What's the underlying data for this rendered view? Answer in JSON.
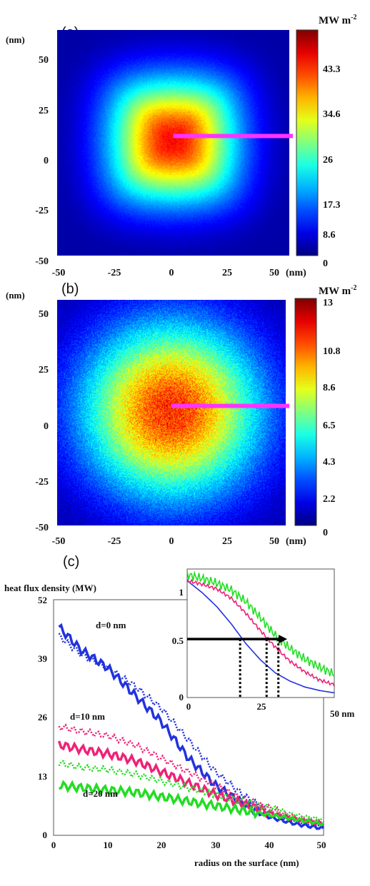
{
  "chart_data": [
    {
      "type": "heatmap",
      "panel_label": "(a)",
      "colorbar_label": "MW m",
      "colorbar_exponent": "-2",
      "x_unit": "(nm)",
      "y_unit": "(nm)",
      "x_ticks": [
        "-50",
        "-25",
        "0",
        "25",
        "50"
      ],
      "y_ticks": [
        "50",
        "25",
        "0",
        "-25",
        "-50"
      ],
      "xlim": [
        -50,
        50
      ],
      "ylim": [
        -50,
        50
      ],
      "colorbar_ticks": [
        "43.3",
        "34.6",
        "26",
        "17.3",
        "8.6",
        "0"
      ],
      "colorbar_range": [
        0,
        52
      ],
      "peak_value": 48,
      "spot_sigma_nm": 19,
      "noise": "low",
      "marker_line": {
        "from": [
          0,
          3
        ],
        "to": [
          50,
          3
        ],
        "color": "#ff33ff"
      }
    },
    {
      "type": "heatmap",
      "panel_label": "(b)",
      "colorbar_label": "MW m",
      "colorbar_exponent": "-2",
      "x_unit": "(nm)",
      "y_unit": "(nm)",
      "x_ticks": [
        "-50",
        "-25",
        "0",
        "25",
        "50"
      ],
      "y_ticks": [
        "50",
        "25",
        "0",
        "-25",
        "-50"
      ],
      "xlim": [
        -50,
        50
      ],
      "ylim": [
        -50,
        50
      ],
      "colorbar_ticks": [
        "13",
        "10.8",
        "8.6",
        "6.5",
        "4.3",
        "2.2",
        "0"
      ],
      "colorbar_range": [
        0,
        13
      ],
      "peak_value": 11.5,
      "spot_sigma_nm": 27,
      "noise": "high",
      "marker_line": {
        "from": [
          0,
          3
        ],
        "to": [
          50,
          3
        ],
        "color": "#ff33ff"
      }
    },
    {
      "type": "line",
      "panel_label": "(c)",
      "ylabel": "heat flux density (MW)",
      "xlabel": "radius on the surface (nm)",
      "xlim": [
        0,
        50
      ],
      "ylim": [
        0,
        52
      ],
      "x_ticks": [
        "0",
        "10",
        "20",
        "30",
        "40",
        "50"
      ],
      "y_ticks": [
        "0",
        "13",
        "26",
        "39",
        "52"
      ],
      "annotations": [
        "d=0 nm",
        "d=10 nm",
        "d=20 nm"
      ],
      "series": [
        {
          "color": "#2233dd",
          "style": "solid",
          "x": [
            1,
            5,
            10,
            15,
            20,
            25,
            30,
            35,
            40,
            45,
            50
          ],
          "y": [
            46,
            41,
            37,
            31,
            25,
            17,
            11,
            7,
            4,
            2.5,
            1.5
          ]
        },
        {
          "color": "#2233dd",
          "style": "dotted",
          "x": [
            1,
            5,
            10,
            15,
            20,
            25,
            30,
            35,
            40,
            45,
            50
          ],
          "y": [
            44,
            40,
            37,
            33,
            28,
            21,
            14,
            9,
            5,
            3,
            2
          ]
        },
        {
          "color": "#ee2277",
          "style": "solid",
          "x": [
            1,
            5,
            10,
            15,
            20,
            25,
            30,
            35,
            40,
            45,
            50
          ],
          "y": [
            20,
            19,
            18,
            16.5,
            14,
            11.5,
            9,
            7,
            5,
            3.5,
            2.5
          ]
        },
        {
          "color": "#ee2277",
          "style": "dotted",
          "x": [
            1,
            5,
            10,
            15,
            20,
            25,
            30,
            35,
            40,
            45,
            50
          ],
          "y": [
            24,
            23,
            22,
            20,
            17,
            14,
            11,
            8,
            6,
            4,
            3
          ]
        },
        {
          "color": "#22dd22",
          "style": "solid",
          "x": [
            1,
            5,
            10,
            15,
            20,
            25,
            30,
            35,
            40,
            45,
            50
          ],
          "y": [
            11,
            10.5,
            10,
            9.5,
            8.5,
            7.5,
            6.5,
            5.5,
            4.5,
            3.5,
            2.5
          ]
        },
        {
          "color": "#22dd22",
          "style": "dotted",
          "x": [
            1,
            5,
            10,
            15,
            20,
            25,
            30,
            35,
            40,
            45,
            50
          ],
          "y": [
            16,
            15,
            14.5,
            13.5,
            12,
            10.5,
            9,
            7.5,
            6,
            4.5,
            3.5
          ]
        }
      ],
      "inset": {
        "xlim": [
          0,
          50
        ],
        "ylim": [
          0,
          1.1
        ],
        "x_ticks": [
          "0",
          "25",
          "50 nm"
        ],
        "y_ticks": [
          "0",
          "0.5",
          "1"
        ],
        "series": [
          {
            "color": "#2233dd",
            "x": [
              0,
              5,
              10,
              15,
              20,
              25,
              30,
              35,
              40,
              45,
              50
            ],
            "y": [
              1,
              0.9,
              0.78,
              0.63,
              0.46,
              0.32,
              0.21,
              0.14,
              0.09,
              0.06,
              0.04
            ]
          },
          {
            "color": "#ee2277",
            "x": [
              0,
              5,
              10,
              15,
              20,
              25,
              30,
              35,
              40,
              45,
              50
            ],
            "y": [
              1,
              0.97,
              0.93,
              0.85,
              0.72,
              0.57,
              0.43,
              0.31,
              0.22,
              0.15,
              0.11
            ]
          },
          {
            "color": "#22dd22",
            "x": [
              0,
              5,
              10,
              15,
              20,
              25,
              30,
              35,
              40,
              45,
              50
            ],
            "y": [
              1.05,
              1.02,
              0.98,
              0.92,
              0.82,
              0.68,
              0.53,
              0.42,
              0.33,
              0.26,
              0.2
            ]
          }
        ],
        "half_max_arrow": {
          "y": 0.5,
          "x_start": 0,
          "x_end": 34
        },
        "half_max_markers": [
          18,
          27,
          31
        ]
      }
    }
  ]
}
